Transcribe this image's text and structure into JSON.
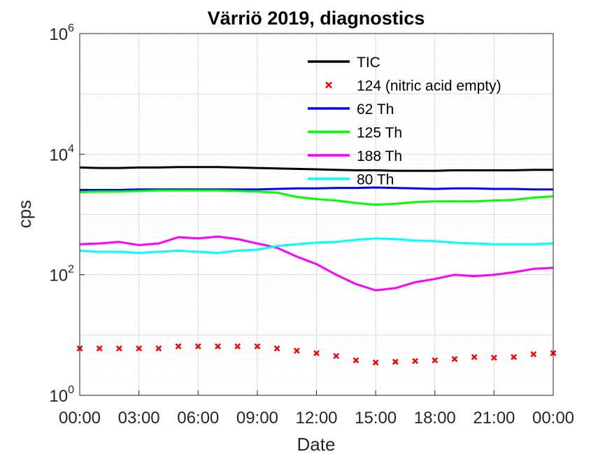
{
  "chart_data": {
    "type": "line",
    "title": "Värriö 2019, diagnostics",
    "xlabel": "Date",
    "ylabel": "cps",
    "yscale": "log",
    "ylim": [
      1,
      1000000
    ],
    "xlim_hours": [
      0,
      24
    ],
    "grid": true,
    "legend_position": "top-center",
    "x_ticks": [
      "00:00",
      "03:00",
      "06:00",
      "09:00",
      "12:00",
      "15:00",
      "18:00",
      "21:00",
      "00:00"
    ],
    "y_ticks": [
      {
        "base": "10",
        "exp": "0"
      },
      {
        "base": "10",
        "exp": "2"
      },
      {
        "base": "10",
        "exp": "4"
      },
      {
        "base": "10",
        "exp": "6"
      }
    ],
    "x_hours": [
      0,
      1,
      2,
      3,
      4,
      5,
      6,
      7,
      8,
      9,
      10,
      11,
      12,
      13,
      14,
      15,
      16,
      17,
      18,
      19,
      20,
      21,
      22,
      23,
      24
    ],
    "series": [
      {
        "name": "TIC",
        "style": "line",
        "color": "#000000",
        "values": [
          6000,
          5900,
          5900,
          6000,
          6000,
          6100,
          6100,
          6100,
          6000,
          5900,
          5800,
          5700,
          5600,
          5500,
          5400,
          5400,
          5300,
          5300,
          5300,
          5400,
          5400,
          5400,
          5400,
          5500,
          5500
        ]
      },
      {
        "name": "124 (nitric acid empty)",
        "style": "marker",
        "color": "#ff0000",
        "values": [
          6,
          6,
          6,
          6,
          6,
          6.5,
          6.5,
          6.5,
          6.5,
          6.5,
          6,
          5.5,
          5,
          4.5,
          3.8,
          3.5,
          3.6,
          3.7,
          3.8,
          4,
          4.3,
          4.2,
          4.3,
          4.8,
          5
        ]
      },
      {
        "name": "62 Th",
        "style": "line",
        "color": "#0000ff",
        "values": [
          2550,
          2550,
          2550,
          2600,
          2600,
          2600,
          2600,
          2600,
          2600,
          2600,
          2650,
          2700,
          2700,
          2750,
          2750,
          2800,
          2750,
          2700,
          2650,
          2700,
          2700,
          2650,
          2650,
          2600,
          2600
        ]
      },
      {
        "name": "125 Th",
        "style": "line",
        "color": "#00ff00",
        "values": [
          2350,
          2400,
          2400,
          2450,
          2500,
          2500,
          2500,
          2500,
          2450,
          2400,
          2300,
          1950,
          1800,
          1700,
          1550,
          1450,
          1500,
          1600,
          1650,
          1650,
          1650,
          1700,
          1750,
          1900,
          2000
        ]
      },
      {
        "name": "188 Th",
        "style": "line",
        "color": "#ff00ff",
        "values": [
          320,
          330,
          350,
          310,
          330,
          420,
          400,
          430,
          390,
          330,
          280,
          200,
          150,
          100,
          70,
          55,
          60,
          75,
          85,
          100,
          95,
          100,
          110,
          125,
          130
        ]
      },
      {
        "name": "80 Th",
        "style": "line",
        "color": "#00ffff",
        "values": [
          250,
          240,
          240,
          230,
          240,
          250,
          240,
          230,
          250,
          260,
          300,
          320,
          340,
          350,
          380,
          400,
          390,
          370,
          360,
          340,
          330,
          320,
          320,
          320,
          330
        ]
      }
    ]
  }
}
